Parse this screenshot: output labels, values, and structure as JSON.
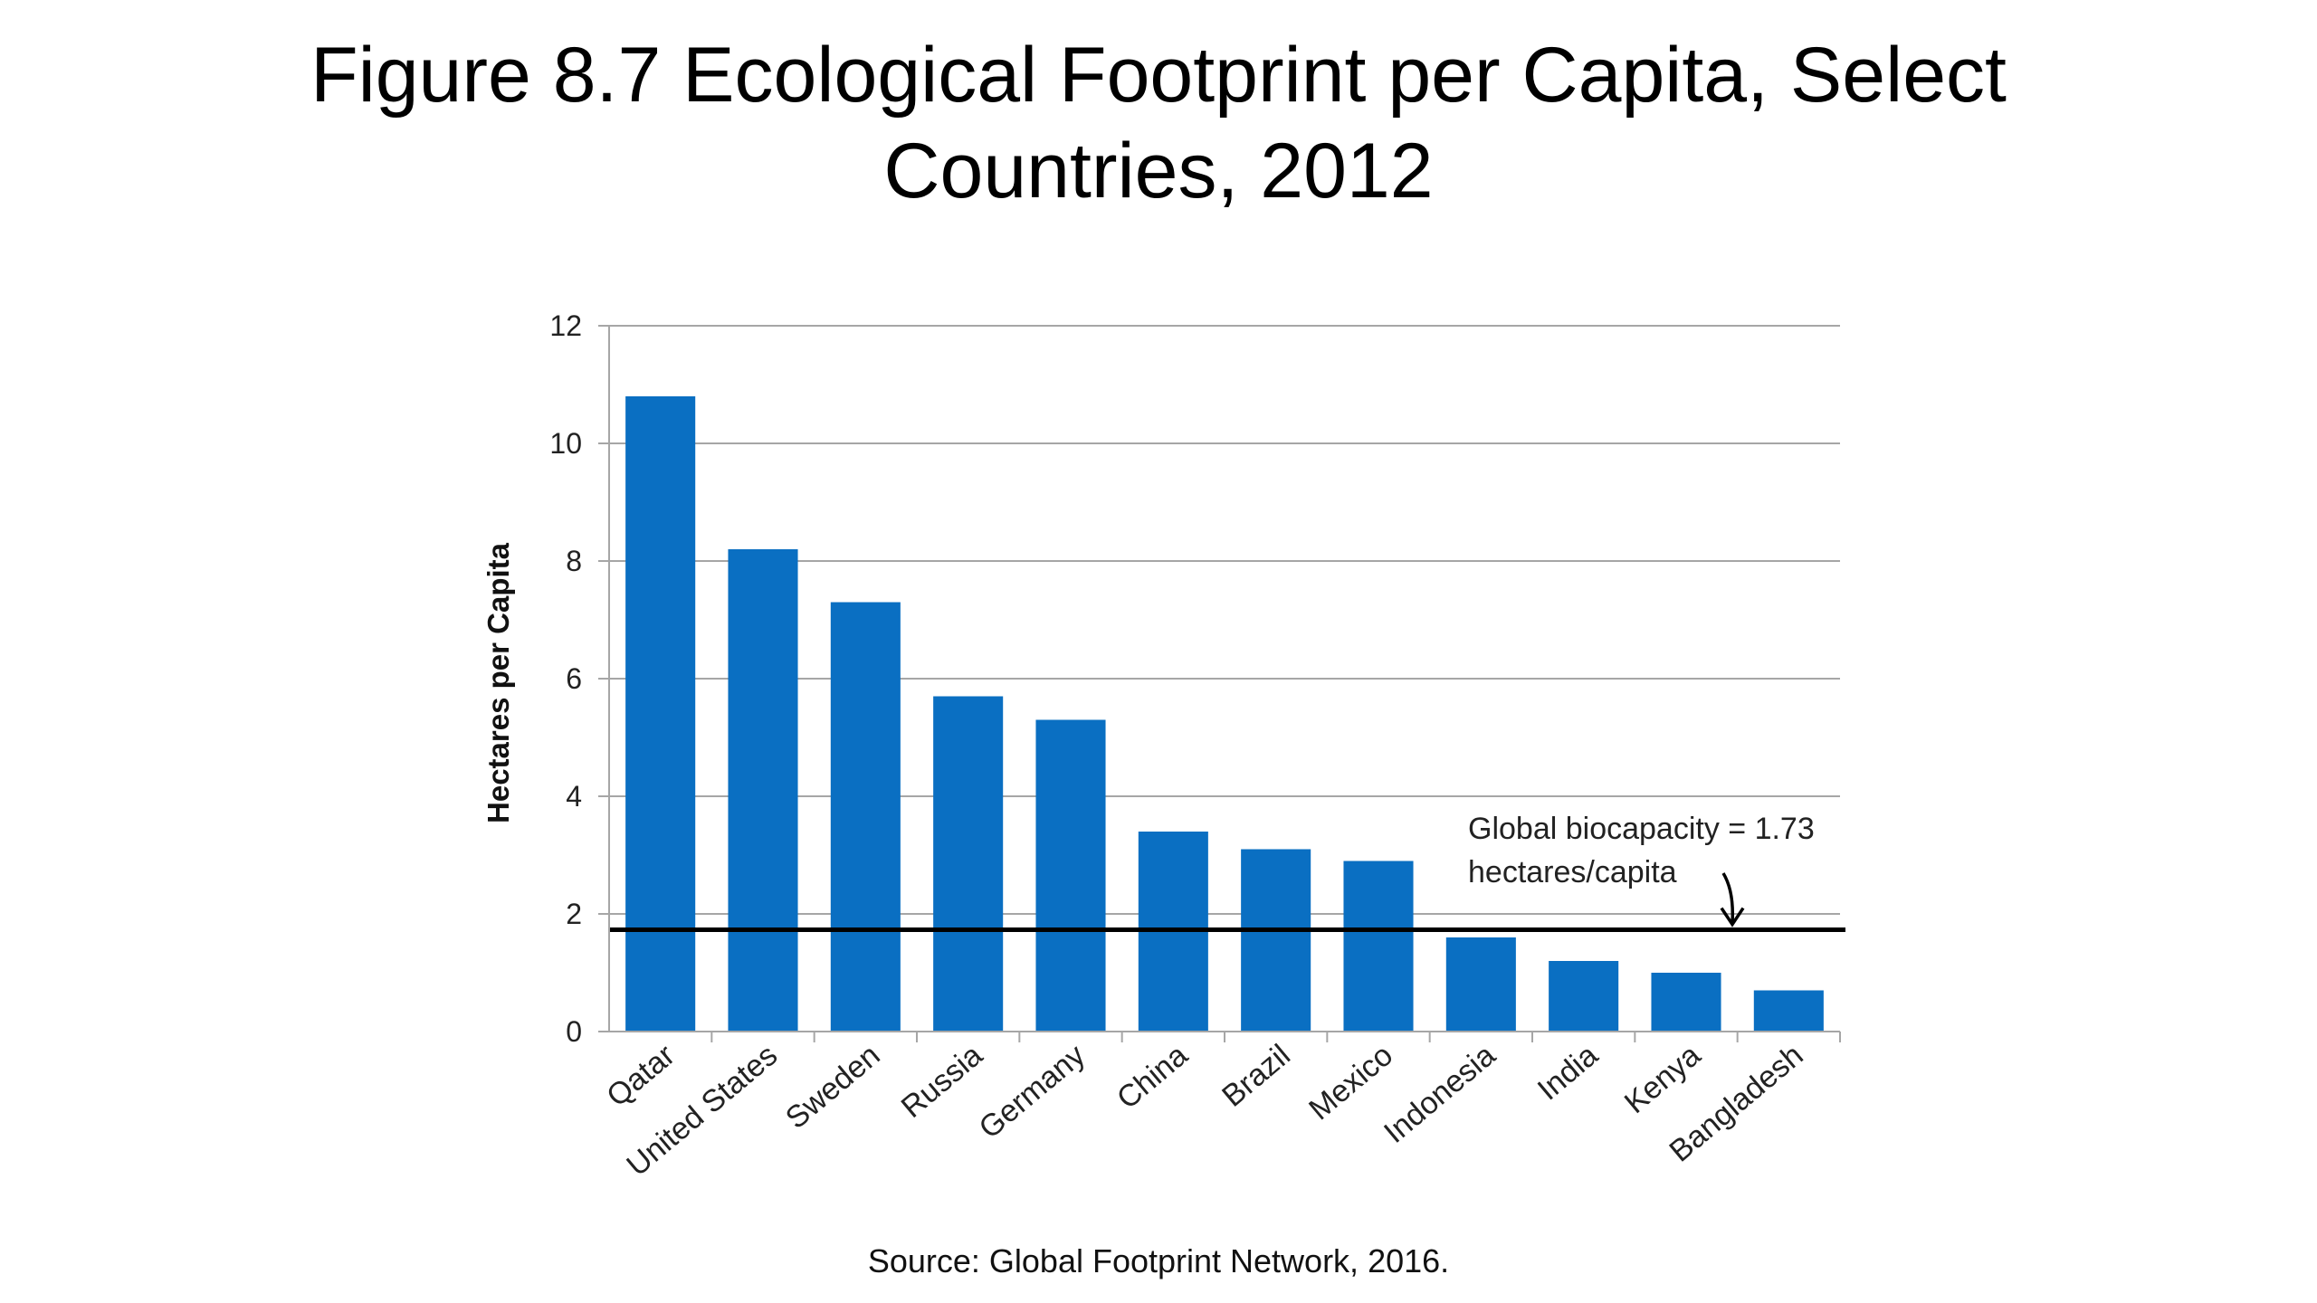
{
  "title": "Figure 8.7 Ecological Footprint per Capita, Select Countries, 2012",
  "source": "Source: Global Footprint Network, 2016.",
  "colors": {
    "bar": "#0a6fc2",
    "grid": "#a6a6a6",
    "reference_line": "#000000"
  },
  "chart_data": {
    "type": "bar",
    "categories": [
      "Qatar",
      "United States",
      "Sweden",
      "Russia",
      "Germany",
      "China",
      "Brazil",
      "Mexico",
      "Indonesia",
      "India",
      "Kenya",
      "Bangladesh"
    ],
    "values": [
      10.8,
      8.2,
      7.3,
      5.7,
      5.3,
      3.4,
      3.1,
      2.9,
      1.6,
      1.2,
      1.0,
      0.7
    ],
    "ylabel": "Hectares per Capita",
    "xlabel": "",
    "ylim": [
      0,
      12
    ],
    "yticks": [
      "0",
      "2",
      "4",
      "6",
      "8",
      "10",
      "12"
    ],
    "grid": true,
    "reference_line": {
      "value": 1.73,
      "label_line1": "Global biocapacity = 1.73",
      "label_line2": "hectares/capita"
    }
  }
}
